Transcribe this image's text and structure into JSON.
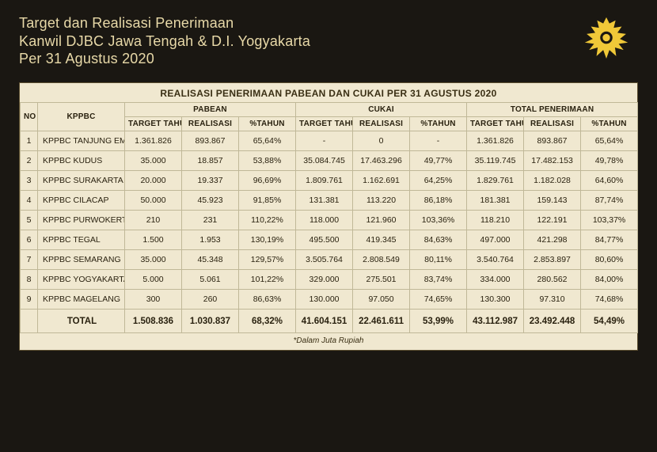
{
  "colors": {
    "page_bg": "#1a1712",
    "title_text": "#e8d9a8",
    "table_bg": "#f0e8d0",
    "table_border": "#c0b898",
    "table_text": "#2a2210",
    "logo": "#f0c838"
  },
  "header": {
    "line1": "Target dan Realisasi Penerimaan",
    "line2": "Kanwil DJBC Jawa Tengah & D.I. Yogyakarta",
    "line3": "Per 31 Agustus 2020"
  },
  "table": {
    "title": "REALISASI PENERIMAAN PABEAN DAN CUKAI PER 31 AGUSTUS 2020",
    "footnote": "*Dalam Juta Rupiah",
    "group_headers": {
      "no": "NO",
      "kppbc": "KPPBC",
      "pabean": "PABEAN",
      "cukai": "CUKAI",
      "total": "TOTAL PENERIMAAN"
    },
    "sub_headers": {
      "target": "TARGET TAHUNAN",
      "realisasi": "REALISASI",
      "pct": "%TAHUN"
    },
    "rows": [
      {
        "no": "1",
        "name": "KPPBC TANJUNG EMAS",
        "p_t": "1.361.826",
        "p_r": "893.867",
        "p_pct": "65,64%",
        "c_t": "-",
        "c_r": "0",
        "c_pct": "-",
        "t_t": "1.361.826",
        "t_r": "893.867",
        "t_pct": "65,64%"
      },
      {
        "no": "2",
        "name": "KPPBC KUDUS",
        "p_t": "35.000",
        "p_r": "18.857",
        "p_pct": "53,88%",
        "c_t": "35.084.745",
        "c_r": "17.463.296",
        "c_pct": "49,77%",
        "t_t": "35.119.745",
        "t_r": "17.482.153",
        "t_pct": "49,78%"
      },
      {
        "no": "3",
        "name": "KPPBC SURAKARTA",
        "p_t": "20.000",
        "p_r": "19.337",
        "p_pct": "96,69%",
        "c_t": "1.809.761",
        "c_r": "1.162.691",
        "c_pct": "64,25%",
        "t_t": "1.829.761",
        "t_r": "1.182.028",
        "t_pct": "64,60%"
      },
      {
        "no": "4",
        "name": "KPPBC CILACAP",
        "p_t": "50.000",
        "p_r": "45.923",
        "p_pct": "91,85%",
        "c_t": "131.381",
        "c_r": "113.220",
        "c_pct": "86,18%",
        "t_t": "181.381",
        "t_r": "159.143",
        "t_pct": "87,74%"
      },
      {
        "no": "5",
        "name": "KPPBC PURWOKERTO",
        "p_t": "210",
        "p_r": "231",
        "p_pct": "110,22%",
        "c_t": "118.000",
        "c_r": "121.960",
        "c_pct": "103,36%",
        "t_t": "118.210",
        "t_r": "122.191",
        "t_pct": "103,37%"
      },
      {
        "no": "6",
        "name": "KPPBC TEGAL",
        "p_t": "1.500",
        "p_r": "1.953",
        "p_pct": "130,19%",
        "c_t": "495.500",
        "c_r": "419.345",
        "c_pct": "84,63%",
        "t_t": "497.000",
        "t_r": "421.298",
        "t_pct": "84,77%"
      },
      {
        "no": "7",
        "name": "KPPBC SEMARANG",
        "p_t": "35.000",
        "p_r": "45.348",
        "p_pct": "129,57%",
        "c_t": "3.505.764",
        "c_r": "2.808.549",
        "c_pct": "80,11%",
        "t_t": "3.540.764",
        "t_r": "2.853.897",
        "t_pct": "80,60%"
      },
      {
        "no": "8",
        "name": "KPPBC YOGYAKARTA",
        "p_t": "5.000",
        "p_r": "5.061",
        "p_pct": "101,22%",
        "c_t": "329.000",
        "c_r": "275.501",
        "c_pct": "83,74%",
        "t_t": "334.000",
        "t_r": "280.562",
        "t_pct": "84,00%"
      },
      {
        "no": "9",
        "name": "KPPBC MAGELANG",
        "p_t": "300",
        "p_r": "260",
        "p_pct": "86,63%",
        "c_t": "130.000",
        "c_r": "97.050",
        "c_pct": "74,65%",
        "t_t": "130.300",
        "t_r": "97.310",
        "t_pct": "74,68%"
      }
    ],
    "total": {
      "label": "TOTAL",
      "p_t": "1.508.836",
      "p_r": "1.030.837",
      "p_pct": "68,32%",
      "c_t": "41.604.151",
      "c_r": "22.461.611",
      "c_pct": "53,99%",
      "t_t": "43.112.987",
      "t_r": "23.492.448",
      "t_pct": "54,49%"
    }
  }
}
